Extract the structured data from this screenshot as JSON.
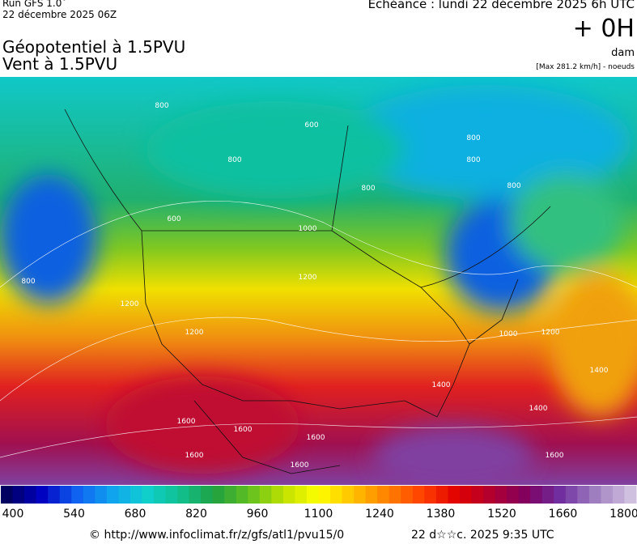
{
  "header": {
    "run": "Run GFS 1.0˚",
    "run_date": "22 décembre 2025 06Z",
    "title_line1": "Géopotentiel à 1.5PVU",
    "title_line2": "Vent à 1.5PVU",
    "valid_time": "Echéance : lundi 22 décembre 2025 6h UTC",
    "lead": "+ 0H",
    "unit": "dam",
    "max_wind": "[Max 281.2 km/h] - noeuds"
  },
  "map": {
    "contour_labels": [
      "800",
      "600",
      "800",
      "800",
      "800",
      "800",
      "800",
      "600",
      "800",
      "1000",
      "1000",
      "1200",
      "1200",
      "1200",
      "1200",
      "1400",
      "1400",
      "1400",
      "1600",
      "1600",
      "1600",
      "1600",
      "1600",
      "1600"
    ]
  },
  "colorbar": {
    "labels": [
      400,
      540,
      680,
      820,
      960,
      1100,
      1240,
      1380,
      1520,
      1660,
      1800
    ]
  },
  "footer": {
    "source": "© http://www.infoclimat.fr/z/gfs/atl1/pvu15/0",
    "generated": "22 d☆☆c. 2025  9:35 UTC"
  }
}
